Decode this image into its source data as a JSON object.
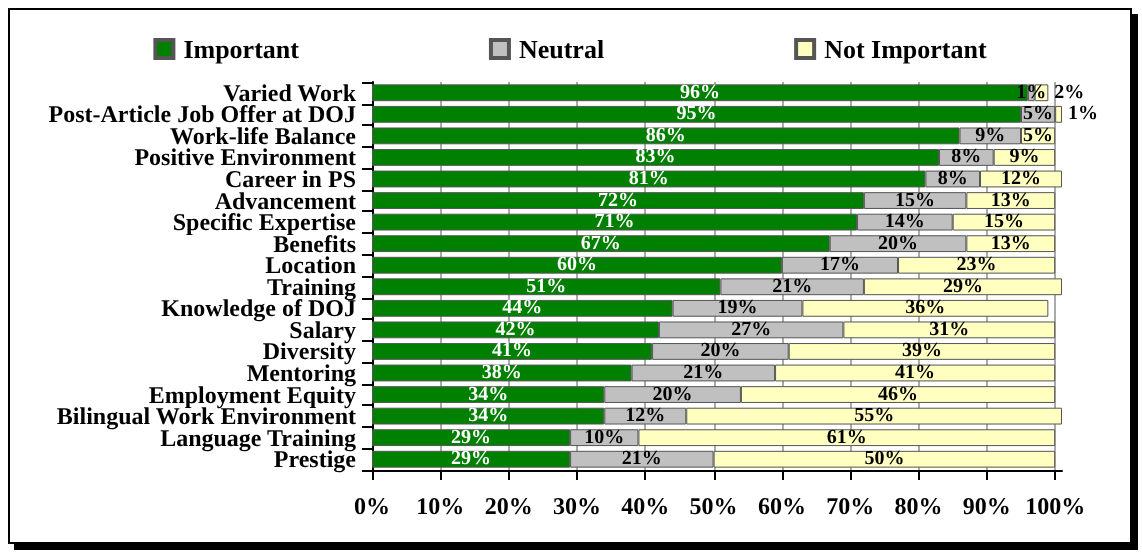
{
  "chart_data": {
    "type": "bar",
    "orientation": "horizontal",
    "stacked": true,
    "categories": [
      "Varied Work",
      "Post-Article Job Offer at DOJ",
      "Work-life Balance",
      "Positive Environment",
      "Career in PS",
      "Advancement",
      "Specific Expertise",
      "Benefits",
      "Location",
      "Training",
      "Knowledge of DOJ",
      "Salary",
      "Diversity",
      "Mentoring",
      "Employment Equity",
      "Bilingual Work Environment",
      "Language Training",
      "Prestige"
    ],
    "series": [
      {
        "name": "Important",
        "color": "#008000",
        "values": [
          96,
          95,
          86,
          83,
          81,
          72,
          71,
          67,
          60,
          51,
          44,
          42,
          41,
          38,
          34,
          34,
          29,
          29
        ],
        "value_labels": [
          "96%",
          "95%",
          "86%",
          "83%",
          "81%",
          "72%",
          "71%",
          "67%",
          "60%",
          "51%",
          "44%",
          "42%",
          "41%",
          "38%",
          "34%",
          "34%",
          "29%",
          "29%"
        ]
      },
      {
        "name": "Neutral",
        "color": "#c0c0c0",
        "values": [
          1,
          5,
          9,
          8,
          8,
          15,
          14,
          20,
          17,
          21,
          19,
          27,
          20,
          21,
          20,
          12,
          10,
          21
        ],
        "value_labels": [
          "1%",
          "5%",
          "9%",
          "8%",
          "8%",
          "15%",
          "14%",
          "20%",
          "17%",
          "21%",
          "19%",
          "27%",
          "20%",
          "21%",
          "20%",
          "12%",
          "10%",
          "21%"
        ]
      },
      {
        "name": "Not Important",
        "color": "#ffffc0",
        "values": [
          2,
          1,
          5,
          9,
          12,
          13,
          15,
          13,
          23,
          29,
          36,
          31,
          39,
          41,
          46,
          55,
          61,
          50
        ],
        "value_labels": [
          "2%",
          "1%",
          "5%",
          "9%",
          "12%",
          "13%",
          "15%",
          "13%",
          "23%",
          "29%",
          "36%",
          "31%",
          "39%",
          "41%",
          "46%",
          "55%",
          "61%",
          "50%"
        ]
      }
    ],
    "xlim": [
      0,
      101
    ],
    "xticks": [
      {
        "value": 0,
        "label": "0%"
      },
      {
        "value": 10,
        "label": "10%"
      },
      {
        "value": 20,
        "label": "20%"
      },
      {
        "value": 30,
        "label": "30%"
      },
      {
        "value": 40,
        "label": "40%"
      },
      {
        "value": 50,
        "label": "50%"
      },
      {
        "value": 60,
        "label": "60%"
      },
      {
        "value": 70,
        "label": "70%"
      },
      {
        "value": 80,
        "label": "80%"
      },
      {
        "value": 90,
        "label": "90%"
      },
      {
        "value": 100,
        "label": "100%"
      }
    ],
    "grid": "x",
    "legend": "top"
  }
}
